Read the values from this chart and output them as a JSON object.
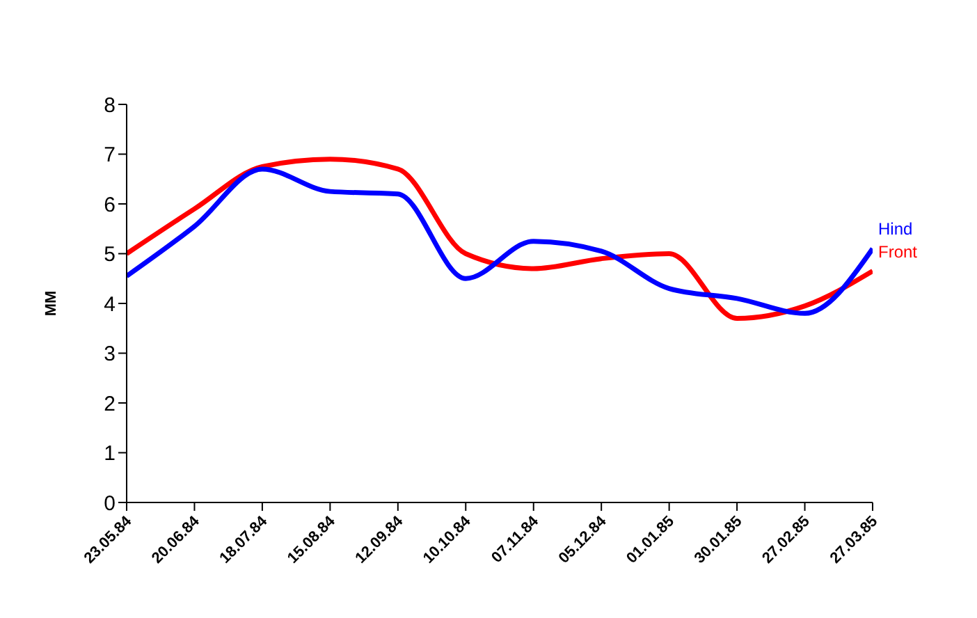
{
  "chart_data": {
    "type": "line",
    "ylabel": "MM",
    "categories": [
      "23.05.84",
      "20.06.84",
      "18.07.84",
      "15.08.84",
      "12.09.84",
      "10.10.84",
      "07.11.84",
      "05.12.84",
      "01.01.85",
      "30.01.85",
      "27.02.85",
      "27.03.85"
    ],
    "series": [
      {
        "name": "Front",
        "color": "#ff0000",
        "values": [
          5.0,
          5.9,
          6.75,
          6.9,
          6.7,
          5.0,
          4.7,
          4.9,
          5.0,
          3.7,
          3.95,
          4.65
        ]
      },
      {
        "name": "Hind",
        "color": "#0000ff",
        "values": [
          4.55,
          5.55,
          6.7,
          6.25,
          6.2,
          4.5,
          5.25,
          5.05,
          4.3,
          4.1,
          3.8,
          5.1
        ]
      }
    ],
    "ylim": [
      0,
      8
    ],
    "yticks": [
      0,
      1,
      2,
      3,
      4,
      5,
      6,
      7,
      8
    ],
    "grid": false,
    "legend": false,
    "marker": "none",
    "line_style": "solid"
  }
}
